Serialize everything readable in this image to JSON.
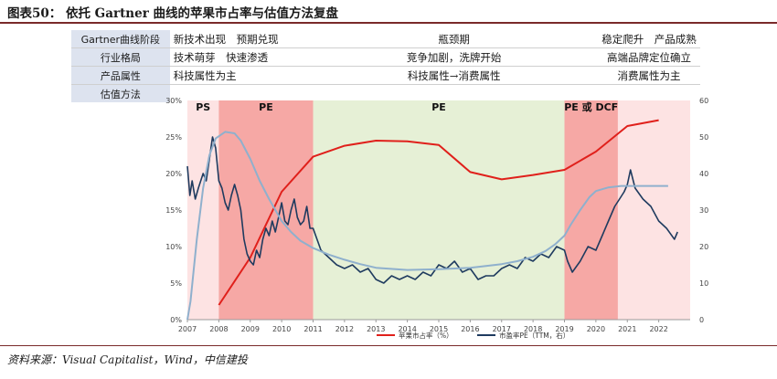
{
  "figure": {
    "title": "图表50： 依托 Gartner 曲线的苹果市占率与估值方法复盘",
    "source": "资料来源：Visual Capitalist，Wind，中信建投"
  },
  "stage_table": {
    "rows": [
      {
        "label": "Gartner曲线阶段",
        "c1": "新技术出现　预期兑现",
        "c2": "瓶颈期",
        "c3": "稳定爬升　产品成熟"
      },
      {
        "label": "行业格局",
        "c1": "技术萌芽　快速渗透",
        "c2": "竞争加剧，洗牌开始",
        "c3": "高端品牌定位确立"
      },
      {
        "label": "产品属性",
        "c1": "科技属性为主",
        "c2": "科技属性→消费属性",
        "c3": "消费属性为主"
      },
      {
        "label": "估值方法",
        "c1": "",
        "c2": "",
        "c3": ""
      }
    ]
  },
  "chart_data": {
    "type": "line",
    "x_range": [
      2007,
      2023
    ],
    "x_ticks": [
      "2007",
      "2008",
      "2009",
      "2010",
      "2011",
      "2012",
      "2013",
      "2014",
      "2015",
      "2016",
      "2017",
      "2018",
      "2019",
      "2020",
      "2021",
      "2022"
    ],
    "y_left": {
      "ticks": [
        "0%",
        "5%",
        "10%",
        "15%",
        "20%",
        "25%",
        "30%"
      ],
      "range": [
        0,
        30
      ]
    },
    "y_right": {
      "ticks": [
        "0",
        "10",
        "20",
        "30",
        "40",
        "50",
        "60"
      ],
      "range": [
        0,
        60
      ]
    },
    "phases": [
      {
        "label": "PS",
        "start": 2007,
        "end": 2008,
        "color": "#fde3e3"
      },
      {
        "label": "PE",
        "start": 2008,
        "end": 2011,
        "color": "#f6a8a5"
      },
      {
        "label": "PE",
        "start": 2011,
        "end": 2019,
        "color": "#e6f0d6"
      },
      {
        "label": "PE 或 DCF",
        "start": 2019,
        "end": 2020.7,
        "color": "#f6a8a5"
      },
      {
        "label": "",
        "start": 2020.7,
        "end": 2023,
        "color": "#fde3e3"
      }
    ],
    "series": [
      {
        "name": "苹果市占率（%）",
        "color": "#e0201b",
        "axis": "left",
        "x": [
          2008,
          2009,
          2010,
          2011,
          2012,
          2013,
          2014,
          2015,
          2016,
          2017,
          2018,
          2019,
          2020,
          2021,
          2022
        ],
        "values": [
          2.0,
          8.5,
          17.5,
          22.3,
          23.8,
          24.5,
          24.4,
          23.9,
          20.2,
          19.2,
          19.8,
          20.5,
          23.0,
          26.5,
          27.3
        ]
      },
      {
        "name": "市盈率PE（TTM，右）",
        "color": "#1f3b5f",
        "axis": "right",
        "x": [
          2007,
          2007.08,
          2007.15,
          2007.25,
          2007.35,
          2007.5,
          2007.6,
          2007.7,
          2007.8,
          2007.9,
          2008,
          2008.1,
          2008.2,
          2008.3,
          2008.4,
          2008.5,
          2008.6,
          2008.7,
          2008.8,
          2008.9,
          2009,
          2009.1,
          2009.2,
          2009.3,
          2009.4,
          2009.5,
          2009.6,
          2009.7,
          2009.8,
          2009.9,
          2010,
          2010.1,
          2010.2,
          2010.3,
          2010.4,
          2010.5,
          2010.6,
          2010.7,
          2010.8,
          2010.9,
          2011,
          2011.25,
          2011.5,
          2011.75,
          2012,
          2012.25,
          2012.5,
          2012.75,
          2013,
          2013.25,
          2013.5,
          2013.75,
          2014,
          2014.25,
          2014.5,
          2014.75,
          2015,
          2015.25,
          2015.5,
          2015.75,
          2016,
          2016.25,
          2016.5,
          2016.75,
          2017,
          2017.25,
          2017.5,
          2017.75,
          2018,
          2018.25,
          2018.5,
          2018.75,
          2019,
          2019.1,
          2019.25,
          2019.5,
          2019.75,
          2020,
          2020.2,
          2020.4,
          2020.6,
          2020.75,
          2020.9,
          2021,
          2021.1,
          2021.25,
          2021.5,
          2021.75,
          2022,
          2022.25,
          2022.5,
          2022.6
        ],
        "values": [
          42,
          34,
          38,
          33,
          36,
          40,
          38,
          44,
          50,
          47,
          38,
          36,
          32,
          30,
          34,
          37,
          34,
          30,
          22,
          18,
          16,
          15,
          19,
          17,
          22,
          25,
          23,
          27,
          24,
          28,
          32,
          27,
          26,
          30,
          33,
          28,
          26,
          27,
          31,
          25,
          25,
          19,
          17,
          15,
          14,
          15,
          13,
          14,
          11,
          10,
          12,
          11,
          12,
          11,
          13,
          12,
          15,
          14,
          16,
          13,
          14,
          11,
          12,
          12,
          14,
          15,
          14,
          17,
          16,
          18,
          17,
          20,
          19,
          16,
          13,
          16,
          20,
          19,
          23,
          27,
          31,
          33,
          35,
          37,
          41,
          36,
          33,
          31,
          27,
          25,
          22,
          24
        ]
      },
      {
        "name": "",
        "color": "#8fb0cd",
        "axis": "left",
        "x": [
          2007,
          2007.1,
          2007.3,
          2007.5,
          2007.7,
          2007.9,
          2008.2,
          2008.5,
          2008.7,
          2009,
          2009.3,
          2009.6,
          2010,
          2010.3,
          2010.6,
          2011,
          2011.5,
          2012,
          2012.5,
          2013,
          2014,
          2015,
          2016,
          2017,
          2017.5,
          2018,
          2018.4,
          2018.7,
          2019,
          2019.2,
          2019.5,
          2019.8,
          2020,
          2020.4,
          2020.8,
          2021.2,
          2021.6,
          2022,
          2022.3
        ],
        "values": [
          0,
          2.5,
          11,
          18,
          22.5,
          24.8,
          25.7,
          25.5,
          24.5,
          22,
          19,
          16.5,
          13.5,
          12.0,
          10.8,
          9.8,
          8.9,
          8.2,
          7.6,
          7.1,
          6.8,
          6.9,
          7.1,
          7.6,
          8.0,
          8.6,
          9.4,
          10.3,
          11.5,
          13.0,
          15.0,
          16.8,
          17.6,
          18.1,
          18.3,
          18.3,
          18.3,
          18.3,
          18.3
        ]
      }
    ],
    "legend_position": "bottom-center"
  }
}
